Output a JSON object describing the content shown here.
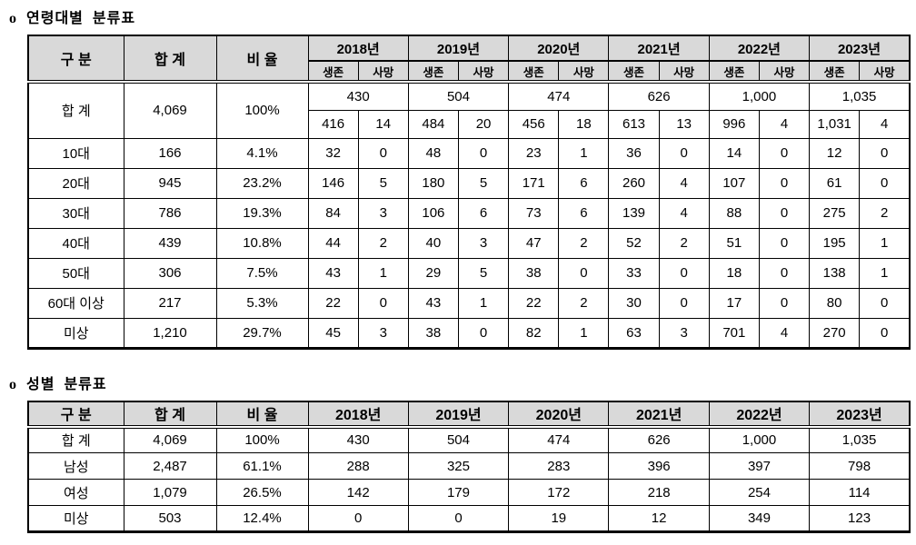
{
  "colors": {
    "header_bg": "#d9d9d9",
    "border": "#000000",
    "text": "#000000"
  },
  "age_table": {
    "title": "o  연령대별  분류표",
    "col_headers": {
      "category": "구 분",
      "total": "합 계",
      "ratio": "비 율"
    },
    "years": [
      "2018년",
      "2019년",
      "2020년",
      "2021년",
      "2022년",
      "2023년"
    ],
    "sub_headers": {
      "alive": "생존",
      "dead": "사망"
    },
    "total_row": {
      "label": "합 계",
      "total": "4,069",
      "ratio": "100%",
      "year_totals": [
        "430",
        "504",
        "474",
        "626",
        "1,000",
        "1,035"
      ],
      "year_detail": [
        "416",
        "14",
        "484",
        "20",
        "456",
        "18",
        "613",
        "13",
        "996",
        "4",
        "1,031",
        "4"
      ]
    },
    "rows": [
      {
        "label": "10대",
        "total": "166",
        "ratio": "4.1%",
        "cells": [
          "32",
          "0",
          "48",
          "0",
          "23",
          "1",
          "36",
          "0",
          "14",
          "0",
          "12",
          "0"
        ]
      },
      {
        "label": "20대",
        "total": "945",
        "ratio": "23.2%",
        "cells": [
          "146",
          "5",
          "180",
          "5",
          "171",
          "6",
          "260",
          "4",
          "107",
          "0",
          "61",
          "0"
        ]
      },
      {
        "label": "30대",
        "total": "786",
        "ratio": "19.3%",
        "cells": [
          "84",
          "3",
          "106",
          "6",
          "73",
          "6",
          "139",
          "4",
          "88",
          "0",
          "275",
          "2"
        ]
      },
      {
        "label": "40대",
        "total": "439",
        "ratio": "10.8%",
        "cells": [
          "44",
          "2",
          "40",
          "3",
          "47",
          "2",
          "52",
          "2",
          "51",
          "0",
          "195",
          "1"
        ]
      },
      {
        "label": "50대",
        "total": "306",
        "ratio": "7.5%",
        "cells": [
          "43",
          "1",
          "29",
          "5",
          "38",
          "0",
          "33",
          "0",
          "18",
          "0",
          "138",
          "1"
        ]
      },
      {
        "label": "60대 이상",
        "total": "217",
        "ratio": "5.3%",
        "cells": [
          "22",
          "0",
          "43",
          "1",
          "22",
          "2",
          "30",
          "0",
          "17",
          "0",
          "80",
          "0"
        ]
      },
      {
        "label": "미상",
        "total": "1,210",
        "ratio": "29.7%",
        "cells": [
          "45",
          "3",
          "38",
          "0",
          "82",
          "1",
          "63",
          "3",
          "701",
          "4",
          "270",
          "0"
        ]
      }
    ]
  },
  "gender_table": {
    "title": "o  성별  분류표",
    "headers": [
      "구 분",
      "합 계",
      "비 율",
      "2018년",
      "2019년",
      "2020년",
      "2021년",
      "2022년",
      "2023년"
    ],
    "rows": [
      {
        "label": "합 계",
        "cells": [
          "4,069",
          "100%",
          "430",
          "504",
          "474",
          "626",
          "1,000",
          "1,035"
        ]
      },
      {
        "label": "남성",
        "cells": [
          "2,487",
          "61.1%",
          "288",
          "325",
          "283",
          "396",
          "397",
          "798"
        ]
      },
      {
        "label": "여성",
        "cells": [
          "1,079",
          "26.5%",
          "142",
          "179",
          "172",
          "218",
          "254",
          "114"
        ]
      },
      {
        "label": "미상",
        "cells": [
          "503",
          "12.4%",
          "0",
          "0",
          "19",
          "12",
          "349",
          "123"
        ]
      }
    ]
  }
}
